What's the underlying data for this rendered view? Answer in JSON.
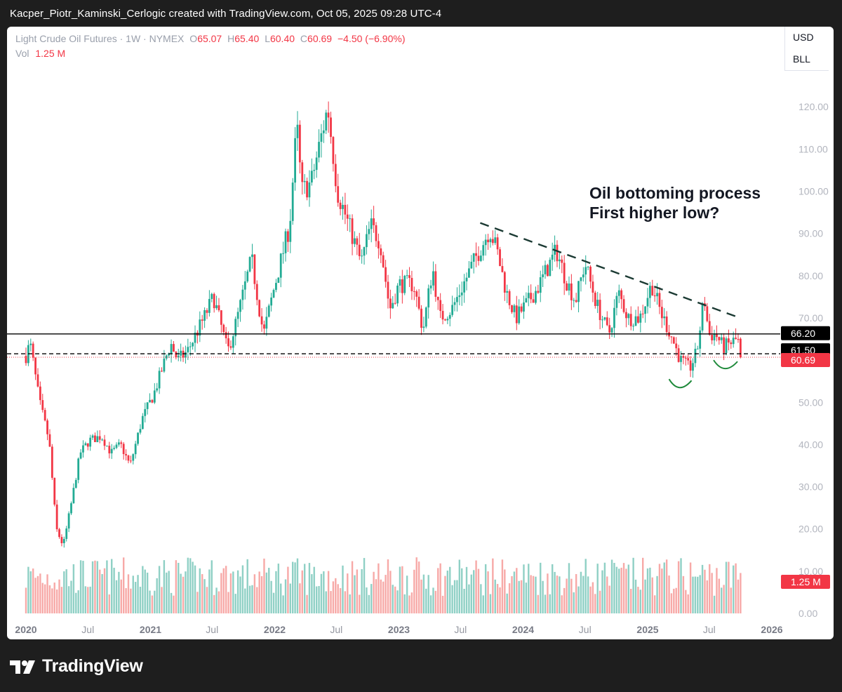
{
  "caption": "Kacper_Piotr_Kaminski_Cerlogic created with TradingView.com, Oct 05, 2025 09:28 UTC-4",
  "legend": {
    "symbol": "Light Crude Oil Futures · 1W · NYMEX",
    "o_label": "O",
    "o_value": "65.07",
    "h_label": "H",
    "h_value": "65.40",
    "l_label": "L",
    "l_value": "60.40",
    "c_label": "C",
    "c_value": "60.69",
    "change": "−4.50 (−6.90%)",
    "vol_label": "Vol",
    "vol_value": "1.25 M"
  },
  "units": {
    "currency": "USD",
    "measure": "BLL"
  },
  "brand": "TradingView",
  "colors": {
    "up": "#22ab94",
    "down": "#f23645",
    "vol_up": "#8fd0c5",
    "vol_down": "#f7a9a7",
    "trend": "#1b3a33",
    "bowl": "#1f8a3b"
  },
  "chart_data": {
    "type": "candlestick",
    "title": "Oil bottoming process\nFirst higher low?",
    "y_range": [
      0,
      132
    ],
    "y_ticks": [
      "120.00",
      "110.00",
      "100.00",
      "90.00",
      "80.00",
      "70.00",
      "50.00",
      "40.00",
      "30.00",
      "20.00",
      "10.00",
      "0.00"
    ],
    "x_ticks": [
      "2020",
      "Jul",
      "2021",
      "Jul",
      "2022",
      "Jul",
      "2023",
      "Jul",
      "2024",
      "Jul",
      "2025",
      "Jul",
      "2026"
    ],
    "x_range": [
      "2019-12-23",
      "2026-01-05"
    ],
    "price_labels": [
      {
        "text": "66.20",
        "value": 66.2,
        "style": "black"
      },
      {
        "text": "61.50",
        "value": 61.5,
        "style": "black"
      },
      {
        "text": "60.69",
        "value": 60.69,
        "style": "red"
      },
      {
        "text": "1.25 M",
        "value": null,
        "style": "red-vol"
      }
    ],
    "horizontal_lines": [
      {
        "value": 66.2,
        "style": "solid"
      },
      {
        "value": 61.5,
        "style": "dashed"
      },
      {
        "value": 60.69,
        "style": "dotted-red"
      }
    ],
    "trendline": {
      "from": [
        "2023-08-28",
        92.5
      ],
      "to": [
        "2025-09-29",
        70.0
      ],
      "style": "dashed"
    },
    "higher_low_marks": [
      {
        "date": "2025-04-07",
        "value": 54
      },
      {
        "date": "2025-08-18",
        "value": 58.5
      }
    ],
    "price_path": [
      [
        "2020-01-01",
        61
      ],
      [
        "2020-01-13",
        64
      ],
      [
        "2020-02-10",
        50
      ],
      [
        "2020-03-09",
        41
      ],
      [
        "2020-03-30",
        20
      ],
      [
        "2020-04-20",
        16
      ],
      [
        "2020-05-11",
        25
      ],
      [
        "2020-06-08",
        38
      ],
      [
        "2020-07-06",
        41
      ],
      [
        "2020-08-10",
        42
      ],
      [
        "2020-09-07",
        38
      ],
      [
        "2020-10-05",
        40
      ],
      [
        "2020-11-02",
        35
      ],
      [
        "2020-12-07",
        46
      ],
      [
        "2021-01-11",
        52
      ],
      [
        "2021-03-01",
        64
      ],
      [
        "2021-03-22",
        60
      ],
      [
        "2021-04-19",
        62
      ],
      [
        "2021-06-07",
        70
      ],
      [
        "2021-07-05",
        75
      ],
      [
        "2021-08-16",
        62
      ],
      [
        "2021-09-13",
        70
      ],
      [
        "2021-10-25",
        84
      ],
      [
        "2021-11-29",
        66
      ],
      [
        "2021-12-27",
        76
      ],
      [
        "2022-02-14",
        92
      ],
      [
        "2022-03-07",
        116
      ],
      [
        "2022-03-21",
        100
      ],
      [
        "2022-04-18",
        102
      ],
      [
        "2022-06-06",
        120
      ],
      [
        "2022-07-04",
        100
      ],
      [
        "2022-08-15",
        90
      ],
      [
        "2022-09-12",
        83
      ],
      [
        "2022-10-10",
        92
      ],
      [
        "2022-11-07",
        88
      ],
      [
        "2022-12-05",
        72
      ],
      [
        "2023-01-02",
        78
      ],
      [
        "2023-02-13",
        78
      ],
      [
        "2023-03-13",
        67
      ],
      [
        "2023-04-10",
        82
      ],
      [
        "2023-05-01",
        70
      ],
      [
        "2023-06-05",
        72
      ],
      [
        "2023-07-10",
        78
      ],
      [
        "2023-08-07",
        83
      ],
      [
        "2023-09-25",
        91
      ],
      [
        "2023-10-16",
        86
      ],
      [
        "2023-11-13",
        76
      ],
      [
        "2023-12-11",
        70
      ],
      [
        "2024-01-08",
        73
      ],
      [
        "2024-02-12",
        77
      ],
      [
        "2024-04-08",
        86
      ],
      [
        "2024-05-06",
        79
      ],
      [
        "2024-06-03",
        74
      ],
      [
        "2024-07-01",
        83
      ],
      [
        "2024-08-05",
        73
      ],
      [
        "2024-09-09",
        66
      ],
      [
        "2024-10-07",
        76
      ],
      [
        "2024-11-04",
        70
      ],
      [
        "2024-12-09",
        70
      ],
      [
        "2025-01-13",
        78
      ],
      [
        "2025-02-10",
        71
      ],
      [
        "2025-03-10",
        66
      ],
      [
        "2025-04-07",
        60
      ],
      [
        "2025-05-05",
        58
      ],
      [
        "2025-05-26",
        62
      ],
      [
        "2025-06-16",
        75
      ],
      [
        "2025-06-30",
        66
      ],
      [
        "2025-07-21",
        66
      ],
      [
        "2025-08-11",
        63
      ],
      [
        "2025-09-01",
        64
      ],
      [
        "2025-09-22",
        65
      ],
      [
        "2025-10-03",
        60.69
      ]
    ]
  }
}
